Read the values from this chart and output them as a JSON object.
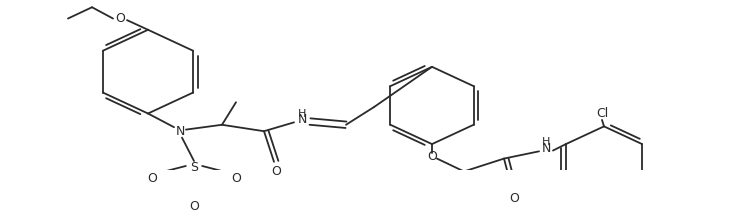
{
  "bg_color": "#ffffff",
  "line_color": "#2a2a2a",
  "line_width": 1.3,
  "figsize": [
    7.33,
    2.11
  ],
  "dpi": 100,
  "xlim": [
    0,
    733
  ],
  "ylim": [
    0,
    211
  ]
}
